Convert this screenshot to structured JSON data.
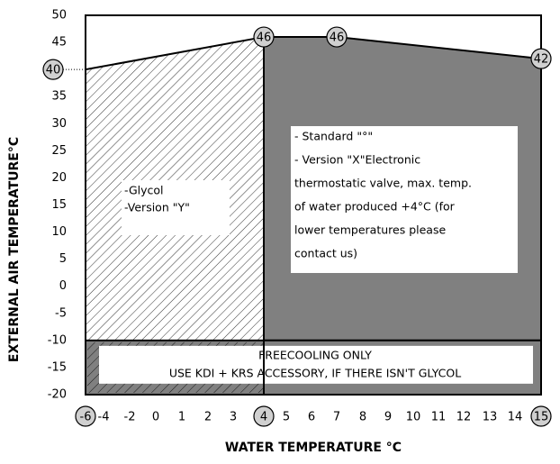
{
  "chart_data": {
    "type": "envelope",
    "ylabel": "EXTERNAL AIR TEMPERATURE°C",
    "xlabel": "WATER TEMPERATURE °C",
    "xlim": [
      -6,
      15
    ],
    "xticks": [
      -6,
      -4,
      -2,
      0,
      1,
      2,
      3,
      4,
      5,
      6,
      7,
      8,
      9,
      10,
      11,
      12,
      13,
      14,
      15
    ],
    "ylim": [
      -20,
      50
    ],
    "yticks": [
      50,
      45,
      40,
      35,
      30,
      25,
      20,
      15,
      10,
      5,
      0,
      -5,
      -10,
      -15,
      -20
    ],
    "envelope": {
      "x": [
        -6,
        4,
        7,
        15
      ],
      "y": [
        40,
        46,
        46,
        42
      ]
    },
    "glycol_region": {
      "x": [
        -6,
        4
      ],
      "labels": [
        "-Glycol",
        "-Version \"Y\""
      ]
    },
    "standard_region": {
      "x": [
        4,
        15
      ],
      "ymin": -10,
      "color": "#808080",
      "labels": [
        "- Standard \"°\"",
        "- Version \"X\"Electronic",
        "thermostatic valve, max. temp.",
        "of water produced +4°C (for",
        "lower temperatures please",
        "contact us)"
      ]
    },
    "freecooling_band": {
      "y": [
        -20,
        -10
      ],
      "labels": [
        "FREECOOLING ONLY",
        "USE KDI + KRS ACCESSORY,  IF THERE ISN'T GLYCOL"
      ]
    }
  }
}
